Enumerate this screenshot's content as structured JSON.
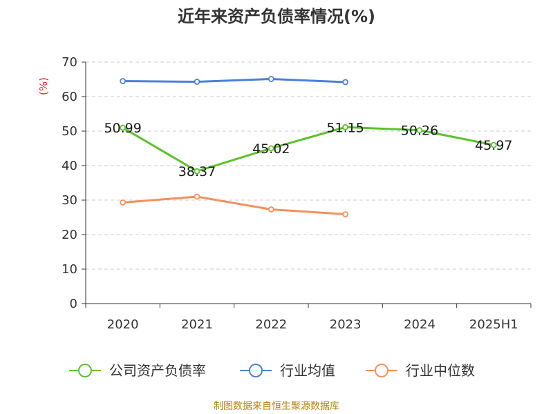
{
  "chart_data": {
    "type": "line",
    "title": "近年来资产负债率情况(%)",
    "ylabel": "(%)",
    "xlabel": "",
    "categories": [
      "2020",
      "2021",
      "2022",
      "2023",
      "2024",
      "2025H1"
    ],
    "ylim": [
      0,
      70
    ],
    "yticks": [
      0,
      10,
      20,
      30,
      40,
      50,
      60,
      70
    ],
    "grid": true,
    "legend_position": "bottom",
    "series": [
      {
        "name": "公司资产负债率",
        "color": "#5cc12b",
        "values": [
          50.99,
          38.37,
          45.02,
          51.15,
          50.26,
          45.97
        ],
        "labels": [
          "50.99",
          "38.37",
          "45.02",
          "51.15",
          "50.26",
          "45.97"
        ]
      },
      {
        "name": "行业均值",
        "color": "#4a7fdc",
        "values": [
          64.5,
          64.3,
          65.1,
          64.2,
          null,
          null
        ]
      },
      {
        "name": "行业中位数",
        "color": "#f5905a",
        "values": [
          29.3,
          31.0,
          27.3,
          25.9,
          null,
          null
        ]
      }
    ]
  },
  "source": "制图数据来自恒生聚源数据库"
}
